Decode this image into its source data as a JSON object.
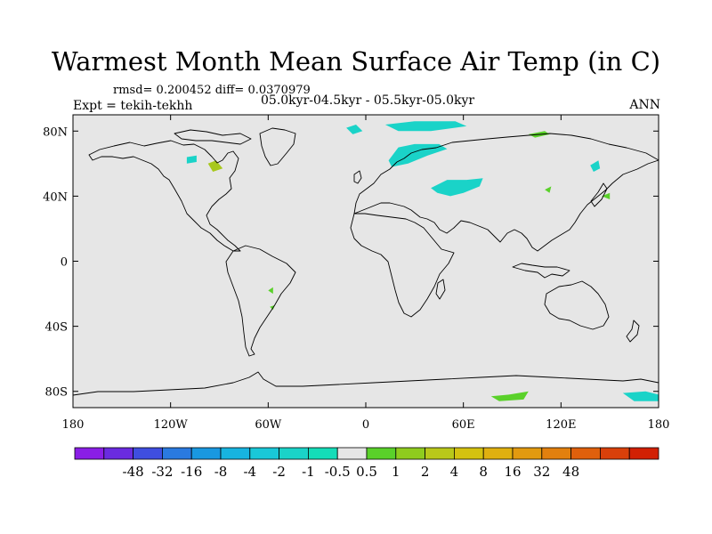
{
  "header": {
    "title": "Warmest Month Mean Surface Air Temp (in C)",
    "stats": "rmsd= 0.200452 diff= 0.0370979",
    "experiment": "Expt = tekih-tekhh",
    "period": "05.0kyr-04.5kyr - 05.5kyr-05.0kyr",
    "season": "ANN"
  },
  "map": {
    "projection": "cylindrical equidistant",
    "lon_range": [
      -180,
      180
    ],
    "lat_range": [
      -90,
      90
    ],
    "lat_ticks": [
      {
        "value": 80,
        "label": "80N"
      },
      {
        "value": 40,
        "label": "40N"
      },
      {
        "value": 0,
        "label": "0"
      },
      {
        "value": -40,
        "label": "40S"
      },
      {
        "value": -80,
        "label": "80S"
      }
    ],
    "lon_ticks": [
      {
        "value": -180,
        "label": "180"
      },
      {
        "value": -120,
        "label": "120W"
      },
      {
        "value": -60,
        "label": "60W"
      },
      {
        "value": 0,
        "label": "0"
      },
      {
        "value": 60,
        "label": "60E"
      },
      {
        "value": 120,
        "label": "120E"
      },
      {
        "value": 180,
        "label": "180"
      }
    ],
    "background_color": "#e6e6e6",
    "coast_color": "#000000",
    "anomaly_regions": [
      {
        "name": "eurasia-cool",
        "color": "#1ad3c8",
        "lonlat": [
          [
            40,
            45
          ],
          [
            50,
            50
          ],
          [
            62,
            50
          ],
          [
            72,
            51
          ],
          [
            70,
            46
          ],
          [
            60,
            42
          ],
          [
            52,
            40
          ],
          [
            44,
            42
          ]
        ]
      },
      {
        "name": "scandinavia-cool",
        "color": "#1ad3c8",
        "lonlat": [
          [
            14,
            62
          ],
          [
            20,
            70
          ],
          [
            30,
            72
          ],
          [
            45,
            72
          ],
          [
            50,
            69
          ],
          [
            38,
            65
          ],
          [
            26,
            60
          ],
          [
            16,
            58
          ]
        ]
      },
      {
        "name": "arctic-russia-cool",
        "color": "#1ad3c8",
        "lonlat": [
          [
            12,
            84
          ],
          [
            30,
            86
          ],
          [
            55,
            86
          ],
          [
            62,
            83
          ],
          [
            40,
            80
          ],
          [
            20,
            80
          ]
        ]
      },
      {
        "name": "svalbard-cool",
        "color": "#1ad3c8",
        "lonlat": [
          [
            -12,
            82
          ],
          [
            -6,
            84
          ],
          [
            -2,
            80
          ],
          [
            -8,
            78
          ]
        ]
      },
      {
        "name": "hudson-cool",
        "color": "#1ad3c8",
        "lonlat": [
          [
            -110,
            64
          ],
          [
            -104,
            65
          ],
          [
            -104,
            61
          ],
          [
            -110,
            60
          ]
        ]
      },
      {
        "name": "canada-warm",
        "color": "#a8c81d",
        "lonlat": [
          [
            -97,
            60
          ],
          [
            -92,
            62
          ],
          [
            -88,
            57
          ],
          [
            -94,
            55
          ]
        ]
      },
      {
        "name": "siberia-warm",
        "color": "#5ad12a",
        "lonlat": [
          [
            100,
            78
          ],
          [
            110,
            80
          ],
          [
            113,
            78
          ],
          [
            104,
            76
          ]
        ]
      },
      {
        "name": "mongolia-warm",
        "color": "#5ad12a",
        "lonlat": [
          [
            110,
            44
          ],
          [
            114,
            46
          ],
          [
            113,
            42
          ]
        ]
      },
      {
        "name": "kamchatka-cool",
        "color": "#1ad3c8",
        "lonlat": [
          [
            138,
            59
          ],
          [
            143,
            62
          ],
          [
            144,
            57
          ],
          [
            140,
            55
          ]
        ]
      },
      {
        "name": "japan-warm",
        "color": "#5ad12a",
        "lonlat": [
          [
            145,
            40
          ],
          [
            150,
            42
          ],
          [
            150,
            38
          ]
        ]
      },
      {
        "name": "brazil-warm",
        "color": "#5ad12a",
        "lonlat": [
          [
            -60,
            -18
          ],
          [
            -57,
            -16
          ],
          [
            -57,
            -20
          ]
        ]
      },
      {
        "name": "argentina-warm",
        "color": "#5ad12a",
        "lonlat": [
          [
            -59,
            -28
          ],
          [
            -56,
            -27
          ],
          [
            -57,
            -30
          ]
        ]
      },
      {
        "name": "antarctica-warm",
        "color": "#5ad12a",
        "lonlat": [
          [
            77,
            -83
          ],
          [
            88,
            -82
          ],
          [
            100,
            -80
          ],
          [
            97,
            -85
          ],
          [
            82,
            -86
          ]
        ]
      },
      {
        "name": "ross-cool",
        "color": "#1ad3c8",
        "lonlat": [
          [
            158,
            -81
          ],
          [
            172,
            -80
          ],
          [
            180,
            -82
          ],
          [
            180,
            -86
          ],
          [
            165,
            -86
          ]
        ]
      }
    ]
  },
  "colorbar": {
    "colors": [
      "#8a1ee6",
      "#6a2be0",
      "#3f4ee0",
      "#2a7ae0",
      "#1998e0",
      "#17b4e0",
      "#19c8d8",
      "#1ad3c8",
      "#14dcb8",
      "#e6e6e6",
      "#5ad12a",
      "#8fcc1e",
      "#b9c81a",
      "#d4c210",
      "#e0b010",
      "#e29a10",
      "#e2800e",
      "#e0600c",
      "#d9400a",
      "#d22004"
    ],
    "labels": [
      "-48",
      "-32",
      "-16",
      "-8",
      "-4",
      "-2",
      "-1",
      "-0.5",
      "0.5",
      "1",
      "2",
      "4",
      "8",
      "16",
      "32",
      "48"
    ]
  }
}
